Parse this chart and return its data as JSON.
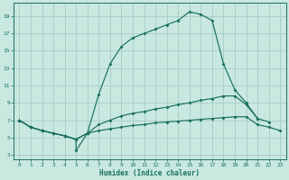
{
  "xlabel": "Humidex (Indice chaleur)",
  "bg_color": "#c8e8e0",
  "line_color": "#1a7060",
  "grid_color": "#a0c8c0",
  "xlim": [
    -0.5,
    23.5
  ],
  "ylim": [
    2.5,
    20.5
  ],
  "yticks": [
    3,
    5,
    7,
    9,
    11,
    13,
    15,
    17,
    19
  ],
  "xticks": [
    0,
    1,
    2,
    3,
    4,
    5,
    6,
    7,
    8,
    9,
    10,
    11,
    12,
    13,
    14,
    15,
    16,
    17,
    18,
    19,
    20,
    21,
    22,
    23
  ],
  "line1_x": [
    0,
    1,
    2,
    3,
    4,
    5,
    5,
    6,
    7,
    8,
    9,
    10,
    11,
    12,
    13,
    14,
    15,
    16,
    17,
    18,
    19,
    20,
    21,
    22
  ],
  "line1_y": [
    7.0,
    6.2,
    5.8,
    5.5,
    5.2,
    4.8,
    3.5,
    5.5,
    10.0,
    13.5,
    15.5,
    16.5,
    17.0,
    17.5,
    18.0,
    18.5,
    19.5,
    19.2,
    18.5,
    13.5,
    10.5,
    9.0,
    7.2,
    6.8
  ],
  "line2_x": [
    0,
    1,
    2,
    3,
    4,
    5,
    6,
    7,
    8,
    9,
    10,
    11,
    12,
    13,
    14,
    15,
    16,
    17,
    18,
    19,
    20,
    21
  ],
  "line2_y": [
    7.0,
    6.2,
    5.8,
    5.5,
    5.2,
    4.8,
    5.5,
    6.5,
    7.0,
    7.5,
    7.8,
    8.0,
    8.3,
    8.5,
    8.8,
    9.0,
    9.3,
    9.5,
    9.8,
    9.8,
    8.8,
    7.2
  ],
  "line3_x": [
    0,
    1,
    2,
    3,
    4,
    5,
    6,
    7,
    8,
    9,
    10,
    11,
    12,
    13,
    14,
    15,
    16,
    17,
    18,
    19,
    20,
    21,
    22,
    23
  ],
  "line3_y": [
    7.0,
    6.2,
    5.8,
    5.5,
    5.2,
    4.8,
    5.5,
    5.8,
    6.0,
    6.2,
    6.4,
    6.5,
    6.7,
    6.8,
    6.9,
    7.0,
    7.1,
    7.2,
    7.3,
    7.4,
    7.4,
    6.5,
    6.2,
    5.8
  ]
}
